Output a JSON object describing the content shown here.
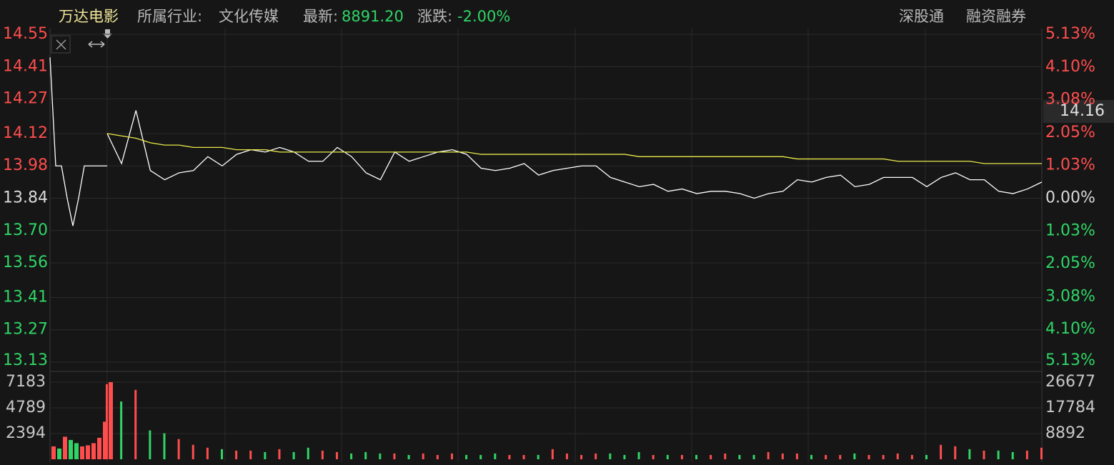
{
  "header": {
    "stock": "万达电影",
    "industry_label": "所属行业:",
    "industry": "文化传媒",
    "latest_label": "最新:",
    "latest": "8891.20",
    "change_label": "涨跌:",
    "change": "-2.00%",
    "tag1": "深股通",
    "tag2": "融资融券"
  },
  "last_price_label": "14.16",
  "chart_data": [
    {
      "type": "line",
      "ylim": [
        13.13,
        14.55
      ],
      "yticks": [
        14.55,
        14.41,
        14.27,
        14.12,
        13.98,
        13.84,
        {
          "value": 13.7,
          "label": "13.70"
        },
        13.56,
        13.41,
        13.27,
        13.13
      ],
      "y2lim": [
        -5.13,
        5.13
      ],
      "y2ticks": [
        {
          "value": 5.13,
          "label": "5.13%"
        },
        {
          "value": 4.1,
          "label": "4.10%"
        },
        {
          "value": 3.08,
          "label": "3.08%"
        },
        {
          "value": 2.05,
          "label": "2.05%"
        },
        {
          "value": 1.03,
          "label": "1.03%"
        },
        {
          "value": 0,
          "label": "0.00%"
        },
        {
          "value": -1.03,
          "label": "1.03%"
        },
        {
          "value": -2.05,
          "label": "2.05%"
        },
        {
          "value": -3.08,
          "label": "3.08%"
        },
        {
          "value": -4.1,
          "label": "4.10%"
        },
        {
          "value": -5.13,
          "label": "5.13%"
        }
      ],
      "up_color": "#ff4d4d",
      "down_color": "#2fd566",
      "flat_color": "#d8d8d8",
      "grid": true,
      "series": [
        {
          "color": "#ffffff",
          "values": [
            14.45,
            13.98,
            13.98,
            13.84,
            13.72,
            13.84,
            13.98,
            13.98,
            13.98,
            13.98,
            13.98
          ]
        },
        {
          "color": "#ffffff",
          "values": [
            14.12,
            13.99,
            14.22,
            13.96,
            13.92,
            13.95,
            13.96,
            14.02,
            13.98,
            14.03,
            14.05,
            14.04,
            14.06,
            14.04,
            14.0,
            14.0,
            14.06,
            14.02,
            13.95,
            13.92,
            14.04,
            14.0,
            14.02,
            14.04,
            14.05,
            14.03,
            13.97,
            13.96,
            13.97,
            13.99,
            13.94,
            13.96,
            13.97,
            13.98,
            13.98,
            13.93,
            13.91,
            13.89,
            13.9,
            13.87,
            13.88,
            13.86,
            13.87,
            13.87,
            13.86,
            13.84,
            13.86,
            13.87,
            13.92,
            13.91,
            13.93,
            13.94,
            13.89,
            13.9,
            13.93,
            13.93,
            13.93,
            13.89,
            13.93,
            13.95,
            13.92,
            13.92,
            13.87,
            13.86,
            13.88,
            13.91
          ]
        },
        {
          "color": "#e8e84a",
          "values": [
            14.12,
            14.11,
            14.1,
            14.08,
            14.07,
            14.07,
            14.06,
            14.06,
            14.06,
            14.05,
            14.05,
            14.05,
            14.04,
            14.04,
            14.04,
            14.04,
            14.04,
            14.04,
            14.04,
            14.04,
            14.04,
            14.04,
            14.04,
            14.04,
            14.04,
            14.04,
            14.03,
            14.03,
            14.03,
            14.03,
            14.03,
            14.03,
            14.03,
            14.03,
            14.03,
            14.03,
            14.03,
            14.02,
            14.02,
            14.02,
            14.02,
            14.02,
            14.02,
            14.02,
            14.02,
            14.02,
            14.02,
            14.02,
            14.01,
            14.01,
            14.01,
            14.01,
            14.01,
            14.01,
            14.01,
            14.0,
            14.0,
            14.0,
            14.0,
            14.0,
            14.0,
            13.99,
            13.99,
            13.99,
            13.99,
            13.99
          ]
        }
      ]
    },
    {
      "type": "bar",
      "ylim": [
        0,
        7183
      ],
      "yticks": [
        2394,
        4789,
        7183
      ],
      "y2lim": [
        0,
        26677
      ],
      "y2ticks": [
        8892,
        17784,
        26677
      ],
      "up_color": "#ff4d4d",
      "down_color": "#2fd566",
      "series": [
        {
          "axis": "y",
          "values": [
            1200,
            1000,
            2100,
            1800,
            1500,
            1200,
            1300,
            1500,
            2000,
            3500,
            7183
          ]
        },
        {
          "axis": "y2",
          "values": [
            26000,
            20000,
            24000,
            10000,
            9000,
            7000,
            5000,
            4000,
            3500,
            3000,
            3000,
            2500,
            3500,
            2500,
            4000,
            3000,
            2500,
            2000,
            2500,
            2000,
            2000,
            1500,
            2000,
            1500,
            2000,
            1500,
            1500,
            2000,
            1500,
            1500,
            1500,
            3500,
            2000,
            1500,
            2000,
            2000,
            1500,
            2500,
            1500,
            1500,
            1500,
            1500,
            1500,
            2000,
            1500,
            1500,
            2500,
            2000,
            2000,
            1500,
            1500,
            1500,
            2000,
            1500,
            1500,
            2000,
            1500,
            1500,
            5000,
            4500,
            3500,
            3000,
            3000,
            2500,
            3000,
            4000
          ]
        }
      ]
    }
  ]
}
